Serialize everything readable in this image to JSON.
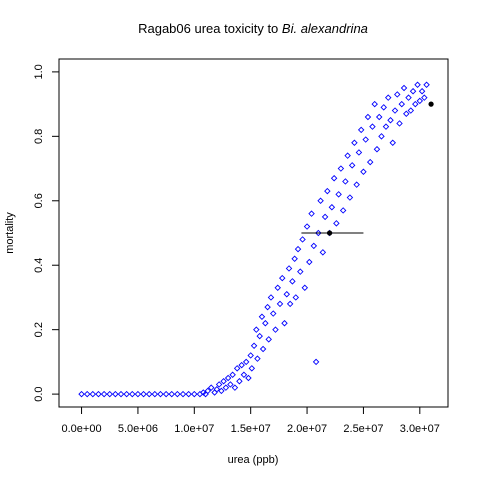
{
  "chart_data": {
    "type": "scatter",
    "title_main": "Ragab06 urea toxicity to ",
    "title_italic": "Bi. alexandrina",
    "xlabel": "urea (ppb)",
    "ylabel": "mortality",
    "xlim": [
      -2000000,
      32500000
    ],
    "ylim": [
      -0.04,
      1.04
    ],
    "x_ticks": [
      0,
      5000000,
      10000000,
      15000000,
      20000000,
      25000000,
      30000000
    ],
    "x_tick_labels": [
      "0.0e+00",
      "5.0e+06",
      "1.0e+07",
      "1.5e+07",
      "2.0e+07",
      "2.5e+07",
      "3.0e+07"
    ],
    "y_ticks": [
      0.0,
      0.2,
      0.4,
      0.6,
      0.8,
      1.0
    ],
    "y_tick_labels": [
      "0.0",
      "0.2",
      "0.4",
      "0.6",
      "0.8",
      "1.0"
    ],
    "grid": false,
    "legend": "none",
    "point_color": "#0000ff",
    "marker_color": "#000000",
    "series": [
      {
        "marker": "open-diamond",
        "points": [
          [
            0,
            0
          ],
          [
            500000,
            0
          ],
          [
            1000000,
            0
          ],
          [
            1500000,
            0
          ],
          [
            2000000,
            0
          ],
          [
            2500000,
            0
          ],
          [
            3000000,
            0
          ],
          [
            3500000,
            0
          ],
          [
            4000000,
            0
          ],
          [
            4500000,
            0
          ],
          [
            5000000,
            0
          ],
          [
            5500000,
            0
          ],
          [
            6000000,
            0
          ],
          [
            6500000,
            0
          ],
          [
            7000000,
            0
          ],
          [
            7500000,
            0
          ],
          [
            8000000,
            0
          ],
          [
            8500000,
            0
          ],
          [
            9000000,
            0
          ],
          [
            9500000,
            0
          ],
          [
            10000000,
            0
          ],
          [
            10500000,
            0
          ],
          [
            11000000,
            0
          ],
          [
            10800000,
            0.005
          ],
          [
            11200000,
            0.01
          ],
          [
            11500000,
            0.02
          ],
          [
            11800000,
            0.005
          ],
          [
            12000000,
            0.015
          ],
          [
            12200000,
            0.03
          ],
          [
            12400000,
            0.01
          ],
          [
            12600000,
            0.04
          ],
          [
            12800000,
            0.02
          ],
          [
            13000000,
            0.05
          ],
          [
            13200000,
            0.03
          ],
          [
            13400000,
            0.06
          ],
          [
            13600000,
            0.02
          ],
          [
            13800000,
            0.08
          ],
          [
            14000000,
            0.04
          ],
          [
            14200000,
            0.09
          ],
          [
            14400000,
            0.06
          ],
          [
            14600000,
            0.1
          ],
          [
            14800000,
            0.05
          ],
          [
            15000000,
            0.12
          ],
          [
            15100000,
            0.08
          ],
          [
            15300000,
            0.15
          ],
          [
            15500000,
            0.2
          ],
          [
            15600000,
            0.11
          ],
          [
            15800000,
            0.18
          ],
          [
            16000000,
            0.24
          ],
          [
            16100000,
            0.14
          ],
          [
            16300000,
            0.22
          ],
          [
            16500000,
            0.27
          ],
          [
            16600000,
            0.17
          ],
          [
            16800000,
            0.3
          ],
          [
            17000000,
            0.25
          ],
          [
            17200000,
            0.2
          ],
          [
            17400000,
            0.33
          ],
          [
            17600000,
            0.28
          ],
          [
            17800000,
            0.36
          ],
          [
            18000000,
            0.22
          ],
          [
            18200000,
            0.31
          ],
          [
            18400000,
            0.39
          ],
          [
            18500000,
            0.28
          ],
          [
            18700000,
            0.35
          ],
          [
            18900000,
            0.42
          ],
          [
            19000000,
            0.3
          ],
          [
            19200000,
            0.45
          ],
          [
            19400000,
            0.38
          ],
          [
            19600000,
            0.48
          ],
          [
            19800000,
            0.33
          ],
          [
            20000000,
            0.52
          ],
          [
            20200000,
            0.41
          ],
          [
            20400000,
            0.56
          ],
          [
            20600000,
            0.46
          ],
          [
            20800000,
            0.1
          ],
          [
            21000000,
            0.5
          ],
          [
            21200000,
            0.6
          ],
          [
            21400000,
            0.44
          ],
          [
            21600000,
            0.55
          ],
          [
            21800000,
            0.63
          ],
          [
            22000000,
            0.5
          ],
          [
            22200000,
            0.58
          ],
          [
            22400000,
            0.67
          ],
          [
            22600000,
            0.53
          ],
          [
            22800000,
            0.62
          ],
          [
            23000000,
            0.7
          ],
          [
            23200000,
            0.57
          ],
          [
            23400000,
            0.66
          ],
          [
            23600000,
            0.74
          ],
          [
            23800000,
            0.61
          ],
          [
            24000000,
            0.71
          ],
          [
            24200000,
            0.78
          ],
          [
            24400000,
            0.65
          ],
          [
            24600000,
            0.75
          ],
          [
            24800000,
            0.82
          ],
          [
            25000000,
            0.69
          ],
          [
            25200000,
            0.79
          ],
          [
            25400000,
            0.86
          ],
          [
            25600000,
            0.72
          ],
          [
            25800000,
            0.83
          ],
          [
            26000000,
            0.9
          ],
          [
            26200000,
            0.76
          ],
          [
            26400000,
            0.86
          ],
          [
            26600000,
            0.8
          ],
          [
            26800000,
            0.89
          ],
          [
            27000000,
            0.83
          ],
          [
            27200000,
            0.92
          ],
          [
            27400000,
            0.85
          ],
          [
            27600000,
            0.78
          ],
          [
            27800000,
            0.88
          ],
          [
            28000000,
            0.93
          ],
          [
            28200000,
            0.84
          ],
          [
            28400000,
            0.9
          ],
          [
            28600000,
            0.95
          ],
          [
            28800000,
            0.87
          ],
          [
            29000000,
            0.92
          ],
          [
            29200000,
            0.88
          ],
          [
            29400000,
            0.94
          ],
          [
            29600000,
            0.9
          ],
          [
            29800000,
            0.96
          ],
          [
            30000000,
            0.91
          ],
          [
            30200000,
            0.94
          ],
          [
            30400000,
            0.92
          ],
          [
            30600000,
            0.96
          ]
        ]
      }
    ],
    "highlight_points": [
      [
        22000000,
        0.5
      ],
      [
        31000000,
        0.9
      ]
    ],
    "error_bar": {
      "y": 0.5,
      "x_from": 19500000,
      "x_to": 25000000
    }
  }
}
